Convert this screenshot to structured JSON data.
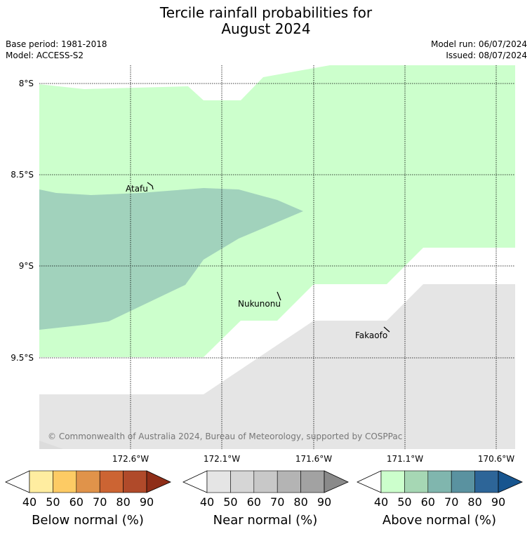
{
  "title_line1": "Tercile rainfall probabilities for",
  "title_line2": "August 2024",
  "meta": {
    "base_period": "Base period: 1981-2018",
    "model": "Model: ACCESS-S2",
    "model_run": "Model run: 06/07/2024",
    "issued": "Issued: 08/07/2024"
  },
  "map": {
    "lat_labels": [
      "8°S",
      "8.5°S",
      "9°S",
      "9.5°S"
    ],
    "lon_labels": [
      "172.6°W",
      "172.1°W",
      "171.6°W",
      "171.1°W",
      "170.6°W"
    ],
    "places": [
      "Atafu",
      "Nukunonu",
      "Fakaofo"
    ],
    "copyright": "© Commonwealth of Australia 2024, Bureau of Meteorology, supported by COSPPac",
    "region_colors": {
      "above_40_50": "#ccffcc",
      "above_50_60": "#a1d2bc",
      "near_40_50": "#e5e5e5"
    }
  },
  "colorbars": [
    {
      "label": "Below normal (%)",
      "ticks": [
        "40",
        "50",
        "60",
        "70",
        "80",
        "90"
      ],
      "colors": [
        "#ffffff",
        "#ffeda0",
        "#fdcb64",
        "#e0934a",
        "#cc6433",
        "#b04a2a",
        "#8f2e18"
      ]
    },
    {
      "label": "Near normal (%)",
      "ticks": [
        "40",
        "50",
        "60",
        "70",
        "80",
        "90"
      ],
      "colors": [
        "#ffffff",
        "#e5e5e5",
        "#d6d6d6",
        "#c8c8c8",
        "#b4b4b4",
        "#a2a2a2",
        "#8a8a8a"
      ]
    },
    {
      "label": "Above normal (%)",
      "ticks": [
        "40",
        "50",
        "60",
        "70",
        "80",
        "90"
      ],
      "colors": [
        "#ffffff",
        "#ccffcc",
        "#a6d7b4",
        "#80b6ae",
        "#5a92a0",
        "#2d6598",
        "#17558f"
      ]
    }
  ]
}
